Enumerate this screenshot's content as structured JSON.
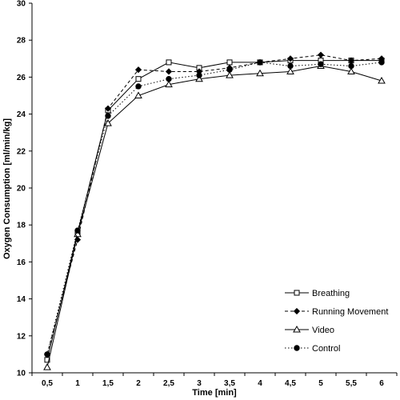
{
  "chart_data": {
    "type": "line",
    "title": "",
    "xlabel": "Time [min]",
    "ylabel": "Oxygen Consumption [ml/min/kg]",
    "x": [
      0.5,
      1,
      1.5,
      2,
      2.5,
      3,
      3.5,
      4,
      4.5,
      5,
      5.5,
      6
    ],
    "x_tick_labels": [
      "0,5",
      "1",
      "1,5",
      "2",
      "2,5",
      "3",
      "3,5",
      "4",
      "4,5",
      "5",
      "5,5",
      "6"
    ],
    "ylim": [
      10,
      30
    ],
    "y_ticks": [
      10,
      12,
      14,
      16,
      18,
      20,
      22,
      24,
      26,
      28,
      30
    ],
    "grid": false,
    "legend_position": "bottom-right",
    "series": [
      {
        "name": "Breathing",
        "line": "solid",
        "marker": "open-square",
        "values": [
          10.7,
          17.6,
          24.2,
          25.9,
          26.8,
          26.5,
          26.8,
          26.8,
          26.9,
          26.9,
          26.9,
          26.9
        ]
      },
      {
        "name": "Running Movement",
        "line": "dashed",
        "marker": "filled-diamond",
        "values": [
          11.0,
          17.2,
          24.3,
          26.4,
          26.3,
          26.3,
          26.5,
          26.8,
          27.0,
          27.2,
          26.9,
          27.0
        ]
      },
      {
        "name": "Video",
        "line": "solid",
        "marker": "open-triangle",
        "values": [
          10.3,
          17.5,
          23.5,
          25.0,
          25.6,
          25.9,
          26.1,
          26.2,
          26.3,
          26.6,
          26.3,
          25.8
        ]
      },
      {
        "name": "Control",
        "line": "dotted",
        "marker": "filled-circle",
        "values": [
          11.0,
          17.7,
          23.9,
          25.5,
          25.9,
          26.1,
          26.4,
          26.8,
          26.6,
          26.7,
          26.6,
          26.8
        ]
      }
    ]
  }
}
